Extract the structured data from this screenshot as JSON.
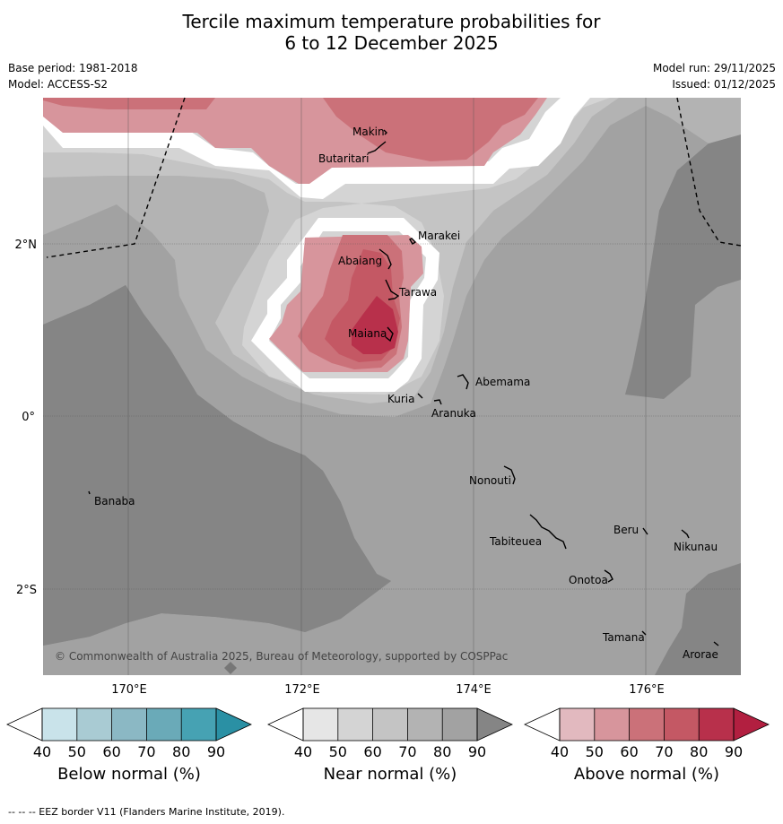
{
  "title_line1": "Tercile maximum temperature probabilities for",
  "title_line2": "6 to 12 December 2025",
  "base_period": "Base period: 1981-2018",
  "model": "Model: ACCESS-S2",
  "model_run": "Model run: 29/11/2025",
  "issued": "Issued: 01/12/2025",
  "lat_labels": [
    "2°N",
    "0°",
    "2°S"
  ],
  "lon_labels": [
    "170°E",
    "172°E",
    "174°E",
    "176°E"
  ],
  "places": [
    "Makin",
    "Butaritari",
    "Marakei",
    "Abaiang",
    "Tarawa",
    "Maiana",
    "Abemama",
    "Kuria",
    "Aranuka",
    "Nonouti",
    "Banaba",
    "Beru",
    "Tabiteuea",
    "Nikunau",
    "Onotoa",
    "Tamana",
    "Arorae"
  ],
  "copyright": "© Commonwealth of Australia 2025, Bureau of Meteorology, supported by COSPPac",
  "colorbar_ticks": [
    "40",
    "50",
    "60",
    "70",
    "80",
    "90"
  ],
  "colorbars": [
    {
      "label": "Below normal (%)",
      "colors": [
        "#ffffff",
        "#c9e3ea",
        "#a9cbd3",
        "#8bb8c4",
        "#6aaab8",
        "#46a2b3",
        "#2a90a4"
      ]
    },
    {
      "label": "Near normal (%)",
      "colors": [
        "#ffffff",
        "#e6e6e6",
        "#d4d4d4",
        "#c4c4c4",
        "#b3b3b3",
        "#a2a2a2",
        "#858585"
      ]
    },
    {
      "label": "Above normal (%)",
      "colors": [
        "#ffffff",
        "#e2b9bf",
        "#d7959c",
        "#cb7179",
        "#c45864",
        "#b8304b",
        "#b21f40"
      ]
    }
  ],
  "footer": "-- -- -- EEZ border V11 (Flanders Marine Institute, 2019)."
}
